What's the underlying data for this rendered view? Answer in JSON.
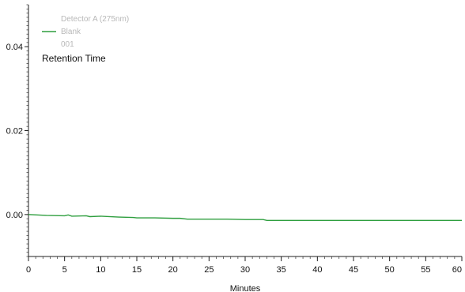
{
  "chart_data": {
    "type": "line",
    "xlabel": "Minutes",
    "ylabel": "",
    "xlim": [
      0,
      60
    ],
    "ylim": [
      -0.01,
      0.05
    ],
    "x_ticks": [
      0,
      5,
      10,
      15,
      20,
      25,
      30,
      35,
      40,
      45,
      50,
      55,
      60
    ],
    "y_ticks": [
      0.0,
      0.02,
      0.04
    ],
    "y_tick_labels": [
      "0.00",
      "0.02",
      "0.04"
    ],
    "grid": false,
    "legend": {
      "placement": "top-left",
      "detector": "Detector A (275nm)",
      "series_label": "Blank",
      "run_id": "001"
    },
    "annotation": "Retention Time",
    "series": [
      {
        "name": "Blank",
        "color": "#2e9e3e",
        "x": [
          0,
          2.5,
          5.0,
          5.5,
          6.0,
          8.0,
          8.5,
          10.0,
          12.5,
          14.5,
          15.0,
          17.5,
          20.0,
          21.0,
          22.0,
          25.0,
          27.5,
          30.0,
          32.5,
          33.0,
          35.0,
          40.0,
          45.0,
          50.0,
          55.0,
          60.0
        ],
        "y": [
          0.0,
          -0.0002,
          -0.0003,
          -0.0001,
          -0.0004,
          -0.0003,
          -0.0005,
          -0.0004,
          -0.0006,
          -0.0007,
          -0.0008,
          -0.0008,
          -0.0009,
          -0.0009,
          -0.0011,
          -0.0011,
          -0.0011,
          -0.0012,
          -0.0012,
          -0.0014,
          -0.0014,
          -0.0014,
          -0.0014,
          -0.0014,
          -0.0014,
          -0.0014
        ]
      }
    ]
  }
}
